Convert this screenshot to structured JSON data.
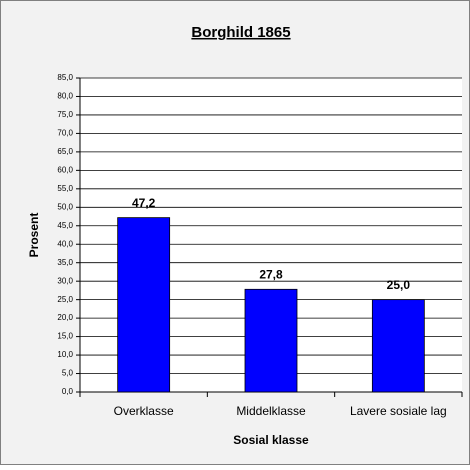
{
  "chart_data": {
    "type": "bar",
    "title": "Borghild 1865",
    "x_label": "Sosial klasse",
    "y_label": "Prosent",
    "categories": [
      "Overklasse",
      "Middelklasse",
      "Lavere sosiale lag"
    ],
    "values": [
      47.2,
      27.8,
      25.0
    ],
    "value_labels": [
      "47,2",
      "27,8",
      "25,0"
    ],
    "color": "#0000ff",
    "ylim": [
      0,
      85
    ],
    "yticks": [
      {
        "value": 0,
        "label": "0,0"
      },
      {
        "value": 5,
        "label": "5,0"
      },
      {
        "value": 10,
        "label": "10,0"
      },
      {
        "value": 15,
        "label": "15,0"
      },
      {
        "value": 20,
        "label": "20,0"
      },
      {
        "value": 25,
        "label": "25,0"
      },
      {
        "value": 30,
        "label": "30,0"
      },
      {
        "value": 35,
        "label": "35,0"
      },
      {
        "value": 40,
        "label": "40,0"
      },
      {
        "value": 45,
        "label": "45,0"
      },
      {
        "value": 50,
        "label": "50,0"
      },
      {
        "value": 55,
        "label": "55,0"
      },
      {
        "value": 60,
        "label": "60,0"
      },
      {
        "value": 65,
        "label": "65,0"
      },
      {
        "value": 70,
        "label": "70,0"
      },
      {
        "value": 75,
        "label": "75,0"
      },
      {
        "value": 80,
        "label": "80,0"
      },
      {
        "value": 85,
        "label": "85,0"
      }
    ],
    "grid": true
  }
}
